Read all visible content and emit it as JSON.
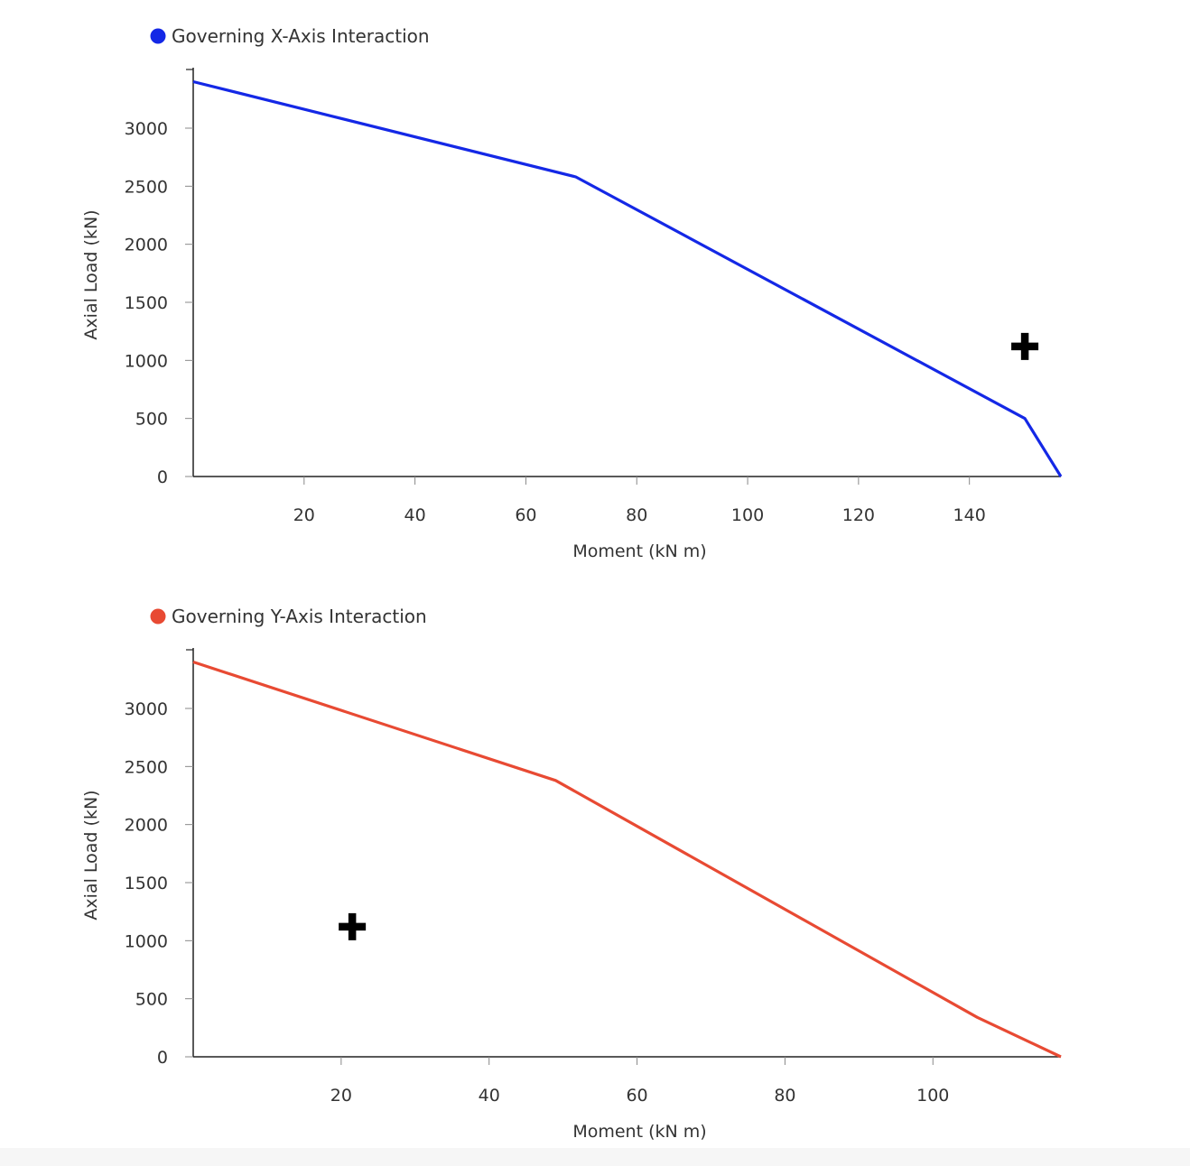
{
  "chart_data": [
    {
      "type": "line",
      "legend": {
        "label": "Governing X-Axis Interaction",
        "placement": "top-left"
      },
      "xlabel": "Moment (kN m)",
      "ylabel": "Axial Load (kN)",
      "xlim": [
        0,
        156.5
      ],
      "ylim": [
        0,
        3400
      ],
      "xticks": [
        20,
        40,
        60,
        80,
        100,
        120,
        140
      ],
      "yticks": [
        0,
        500,
        1000,
        1500,
        2000,
        2500,
        3000
      ],
      "grid": false,
      "series": [
        {
          "name": "Governing X-Axis Interaction",
          "color": "#1428e6",
          "points": [
            [
              0,
              3400
            ],
            [
              69,
              2580
            ],
            [
              150,
              500
            ],
            [
              156.5,
              0
            ]
          ]
        }
      ],
      "markers": [
        {
          "shape": "plus",
          "color": "#000000",
          "x": 150,
          "y": 1120
        }
      ]
    },
    {
      "type": "line",
      "legend": {
        "label": "Governing Y-Axis Interaction",
        "placement": "top-left"
      },
      "xlabel": "Moment (kN m)",
      "ylabel": "Axial Load (kN)",
      "xlim": [
        0,
        117.3
      ],
      "ylim": [
        0,
        3400
      ],
      "xticks": [
        20,
        40,
        60,
        80,
        100
      ],
      "yticks": [
        0,
        500,
        1000,
        1500,
        2000,
        2500,
        3000
      ],
      "grid": false,
      "series": [
        {
          "name": "Governing Y-Axis Interaction",
          "color": "#e84a33",
          "points": [
            [
              0,
              3400
            ],
            [
              49,
              2380
            ],
            [
              106,
              340
            ],
            [
              117.3,
              0
            ]
          ]
        }
      ],
      "markers": [
        {
          "shape": "plus",
          "color": "#000000",
          "x": 21.5,
          "y": 1120
        }
      ]
    }
  ]
}
